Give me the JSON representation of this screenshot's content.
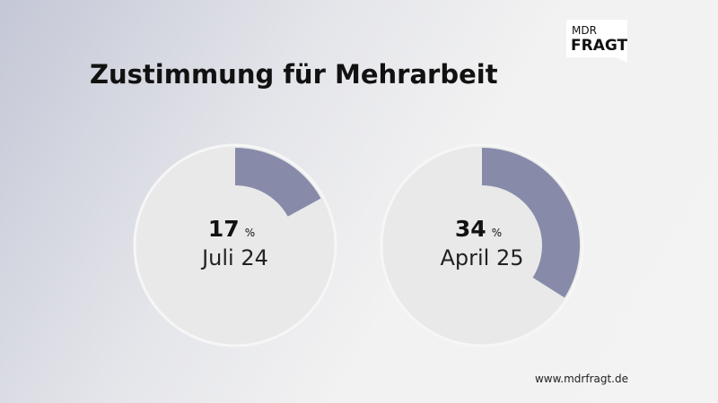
{
  "title": "Zustimmung für Mehrarbeit",
  "logo": {
    "line1": "MDR",
    "line2": "FRAGT"
  },
  "footer": "www.mdrfragt.de",
  "chart_data": [
    {
      "type": "donut",
      "values": [
        17
      ],
      "unit": "%",
      "label": "Juli 24",
      "color": "#878ba9"
    },
    {
      "type": "donut",
      "values": [
        34
      ],
      "unit": "%",
      "label": "April 25",
      "color": "#878ba9"
    }
  ]
}
